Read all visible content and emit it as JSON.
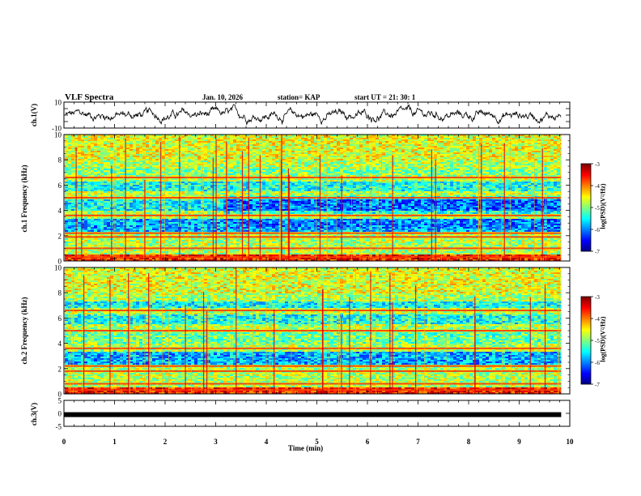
{
  "header": {
    "title": "VLF Spectra",
    "date": "Jan. 10, 2026",
    "station": "station= KAP",
    "start": "start  UT  =   21: 30: 1"
  },
  "chart_data": [
    {
      "type": "line",
      "id": "ch1-waveform",
      "ylabel": "ch.1(V)",
      "ylim": [
        -10,
        10
      ],
      "yticks": [
        "10",
        "-10"
      ],
      "xlim": [
        0,
        10
      ],
      "x_end": 9.83,
      "note": "noisy waveform fluctuating around approximately 0 V"
    },
    {
      "type": "heatmap",
      "id": "ch1-spectrogram",
      "ylabel": "ch.1 Frequency (kHz)",
      "ylim": [
        0,
        10
      ],
      "yticks": [
        "0",
        "2",
        "4",
        "6",
        "8",
        "10"
      ],
      "xlim": [
        0,
        10
      ],
      "x_end": 9.83,
      "colorbar": {
        "label": "log(PSD)(V²/Hz)",
        "range": [
          -7,
          -3
        ],
        "ticks": [
          "-3",
          "-4",
          "-5",
          "-6",
          "-7"
        ]
      },
      "intense_bands_khz": [
        0.3,
        1.0,
        1.9,
        2.2,
        3.6,
        5.0,
        6.6
      ]
    },
    {
      "type": "heatmap",
      "id": "ch2-spectrogram",
      "ylabel": "ch.2 Frequency (kHz)",
      "ylim": [
        0,
        10
      ],
      "yticks": [
        "0",
        "2",
        "4",
        "6",
        "8",
        "10"
      ],
      "xlim": [
        0,
        10
      ],
      "x_end": 9.83,
      "colorbar": {
        "label": "log(PSD)(V²/Hz)",
        "range": [
          -7,
          -3
        ],
        "ticks": [
          "-3",
          "-4",
          "-5",
          "-6",
          "-7"
        ]
      },
      "intense_bands_khz": [
        0.3,
        0.8,
        1.8,
        2.2,
        3.6,
        5.0,
        6.6
      ]
    },
    {
      "type": "line",
      "id": "ch3-waveform",
      "ylabel": "ch.3(V)",
      "ylim": [
        -5,
        5
      ],
      "yticks": [
        "5",
        "0",
        "-5"
      ],
      "xlim": [
        0,
        10
      ],
      "xticks": [
        "0",
        "1",
        "2",
        "3",
        "4",
        "5",
        "6",
        "7",
        "8",
        "9",
        "10"
      ],
      "xlabel": "Time  (min)",
      "constant_value": -0.5,
      "x_end": 9.83
    }
  ]
}
